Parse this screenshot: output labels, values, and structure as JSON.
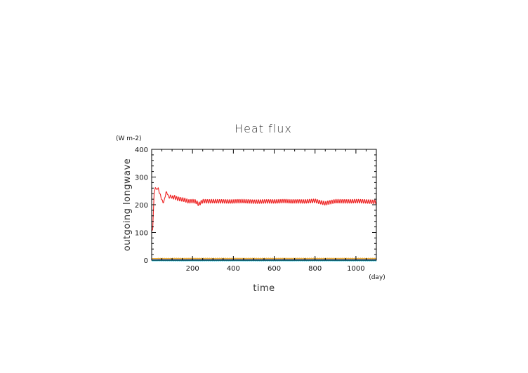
{
  "chart_data": {
    "type": "line",
    "title": "Heat flux",
    "xlabel": "time",
    "ylabel": "outgoing longwave",
    "x_unit": "(day)",
    "y_unit": "(W m-2)",
    "xlim": [
      0,
      1100
    ],
    "ylim": [
      0,
      400
    ],
    "x_major_ticks": [
      200,
      400,
      600,
      800,
      1000
    ],
    "x_minor_step": 50,
    "y_major_ticks": [
      0,
      100,
      200,
      300,
      400
    ],
    "y_minor_step": 20,
    "grid": false,
    "tick_labels": {
      "x": [
        "200",
        "400",
        "600",
        "800",
        "1000"
      ],
      "y": [
        "0",
        "100",
        "200",
        "300",
        "400"
      ]
    },
    "series": [
      {
        "color": "#ee2222",
        "x": [
          0,
          5,
          12,
          18,
          25,
          32,
          40,
          48,
          55,
          62,
          70,
          78,
          85,
          92,
          100,
          110,
          125,
          140,
          160,
          180,
          200,
          215,
          230,
          250,
          275,
          300,
          350,
          400,
          450,
          500,
          550,
          600,
          650,
          700,
          750,
          800,
          850,
          900,
          950,
          1000,
          1050,
          1100
        ],
        "y": [
          105,
          110,
          240,
          262,
          255,
          258,
          240,
          222,
          208,
          215,
          245,
          240,
          225,
          232,
          225,
          228,
          222,
          220,
          218,
          212,
          213,
          212,
          202,
          213,
          212,
          213,
          212,
          212,
          213,
          211,
          212,
          212,
          213,
          212,
          212,
          214,
          205,
          213,
          212,
          213,
          212,
          210
        ],
        "oscillation_amplitude": 7,
        "oscillation_period_days": 10
      },
      {
        "color": "#e8a020",
        "x": [
          0,
          1100
        ],
        "y": [
          6,
          6
        ],
        "oscillation_amplitude": 1,
        "oscillation_period_days": 10
      },
      {
        "color": "#3070d0",
        "x": [
          0,
          1100
        ],
        "y": [
          1,
          1
        ],
        "oscillation_amplitude": 0.4,
        "oscillation_period_days": 10
      },
      {
        "color": "#202020",
        "x": [
          0,
          1100
        ],
        "y": [
          0,
          0
        ],
        "oscillation_amplitude": 0.3,
        "oscillation_period_days": 10
      },
      {
        "color": "#20c0e0",
        "x": [
          0,
          1100
        ],
        "y": [
          -2,
          -2
        ],
        "oscillation_amplitude": 0.8,
        "oscillation_period_days": 10
      }
    ]
  }
}
